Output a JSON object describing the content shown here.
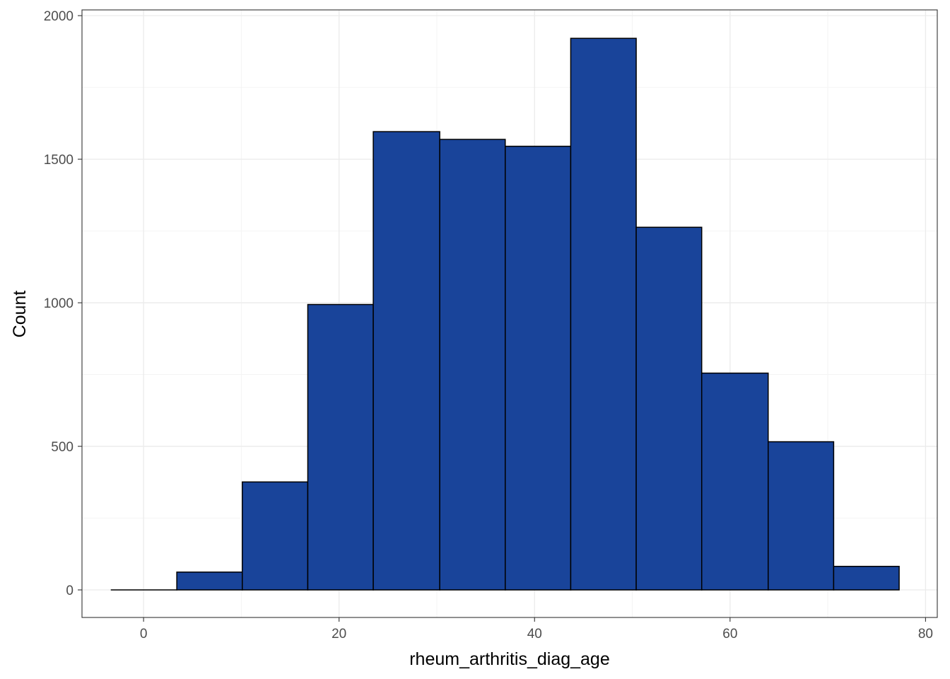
{
  "chart_data": {
    "type": "histogram",
    "title": "",
    "xlabel": "rheum_arthritis_diag_age",
    "ylabel": "Count",
    "xlim": [
      -6.3,
      81.2
    ],
    "ylim": [
      -96,
      2020
    ],
    "x_ticks": [
      0,
      20,
      40,
      60,
      80
    ],
    "y_ticks": [
      0,
      500,
      1000,
      1500,
      2000
    ],
    "x_tick_labels": [
      "0",
      "20",
      "40",
      "60",
      "80"
    ],
    "y_tick_labels": [
      "0",
      "500",
      "1000",
      "1500",
      "2000"
    ],
    "grid": true,
    "bins": [
      {
        "x0": -3.3,
        "x1": 3.4,
        "count": 0
      },
      {
        "x0": 3.4,
        "x1": 10.1,
        "count": 62
      },
      {
        "x0": 10.1,
        "x1": 16.8,
        "count": 376
      },
      {
        "x0": 16.8,
        "x1": 23.5,
        "count": 994
      },
      {
        "x0": 23.5,
        "x1": 30.3,
        "count": 1596
      },
      {
        "x0": 30.3,
        "x1": 37.0,
        "count": 1569
      },
      {
        "x0": 37.0,
        "x1": 43.7,
        "count": 1545
      },
      {
        "x0": 43.7,
        "x1": 50.4,
        "count": 1921
      },
      {
        "x0": 50.4,
        "x1": 57.1,
        "count": 1263
      },
      {
        "x0": 57.1,
        "x1": 63.9,
        "count": 755
      },
      {
        "x0": 63.9,
        "x1": 70.6,
        "count": 516
      },
      {
        "x0": 70.6,
        "x1": 77.3,
        "count": 82
      }
    ],
    "colors": {
      "bar_fill": "#19449A",
      "bar_stroke": "#000000",
      "grid_major": "#EBEBEB",
      "grid_minor": "#F4F4F4",
      "panel_border": "#333333"
    }
  }
}
